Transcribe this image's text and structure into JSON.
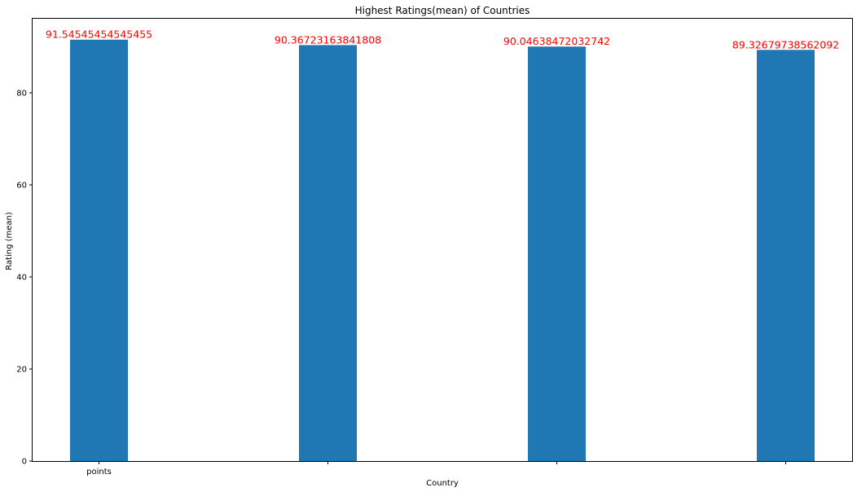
{
  "chart_data": {
    "type": "bar",
    "title": "Highest Ratings(mean) of Countries",
    "xlabel": "Country",
    "ylabel": "Rating (mean)",
    "ylim": [
      0,
      96.1
    ],
    "yticks": [
      0,
      20,
      40,
      60,
      80
    ],
    "categories": [
      "points",
      "",
      "",
      ""
    ],
    "values": [
      91.54545454545455,
      90.36723163841808,
      90.04638472032742,
      89.32679738562092
    ],
    "value_labels": [
      "91.54545454545455",
      "90.36723163841808",
      "90.04638472032742",
      "89.32679738562092"
    ],
    "bar_color": "#1f77b4",
    "value_label_color": "#ff0000",
    "grid": false,
    "legend": "none"
  }
}
